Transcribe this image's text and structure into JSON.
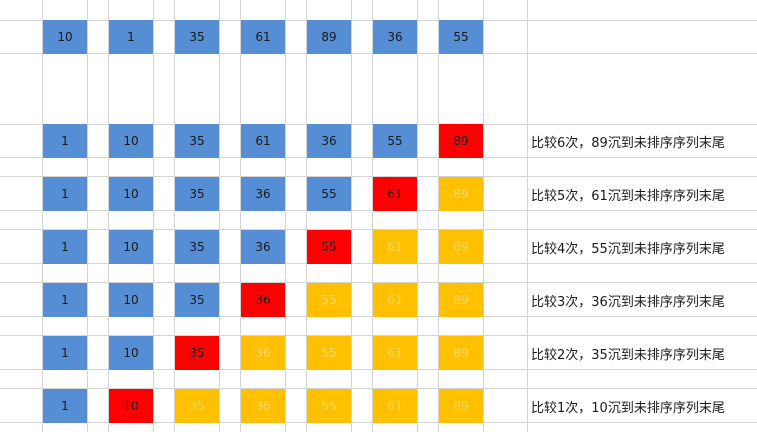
{
  "colors": {
    "unsorted": "#558ed5",
    "sinking": "#ff0000",
    "sorted": "#ffc000",
    "sorted_text": "#ffd966",
    "gridline": "#d4d4d4"
  },
  "initial_row": {
    "values": [
      "10",
      "1",
      "35",
      "61",
      "89",
      "36",
      "55"
    ]
  },
  "passes": [
    {
      "values": [
        "1",
        "10",
        "35",
        "61",
        "36",
        "55",
        "89"
      ],
      "states": [
        "unsorted",
        "unsorted",
        "unsorted",
        "unsorted",
        "unsorted",
        "unsorted",
        "sinking"
      ],
      "label": "比较6次，89沉到未排序序列末尾"
    },
    {
      "values": [
        "1",
        "10",
        "35",
        "36",
        "55",
        "61",
        "89"
      ],
      "states": [
        "unsorted",
        "unsorted",
        "unsorted",
        "unsorted",
        "unsorted",
        "sinking",
        "sorted"
      ],
      "label": "比较5次，61沉到未排序序列末尾"
    },
    {
      "values": [
        "1",
        "10",
        "35",
        "36",
        "55",
        "61",
        "89"
      ],
      "states": [
        "unsorted",
        "unsorted",
        "unsorted",
        "unsorted",
        "sinking",
        "sorted",
        "sorted"
      ],
      "label": "比较4次，55沉到未排序序列末尾"
    },
    {
      "values": [
        "1",
        "10",
        "35",
        "36",
        "55",
        "61",
        "89"
      ],
      "states": [
        "unsorted",
        "unsorted",
        "unsorted",
        "sinking",
        "sorted",
        "sorted",
        "sorted"
      ],
      "label": "比较3次，36沉到未排序序列末尾"
    },
    {
      "values": [
        "1",
        "10",
        "35",
        "36",
        "55",
        "61",
        "89"
      ],
      "states": [
        "unsorted",
        "unsorted",
        "sinking",
        "sorted",
        "sorted",
        "sorted",
        "sorted"
      ],
      "label": "比较2次，35沉到未排序序列末尾"
    },
    {
      "values": [
        "1",
        "10",
        "35",
        "36",
        "55",
        "61",
        "89"
      ],
      "states": [
        "unsorted",
        "sinking",
        "sorted",
        "sorted",
        "sorted",
        "sorted",
        "sorted"
      ],
      "label": "比较1次，10沉到未排序序列末尾"
    }
  ]
}
